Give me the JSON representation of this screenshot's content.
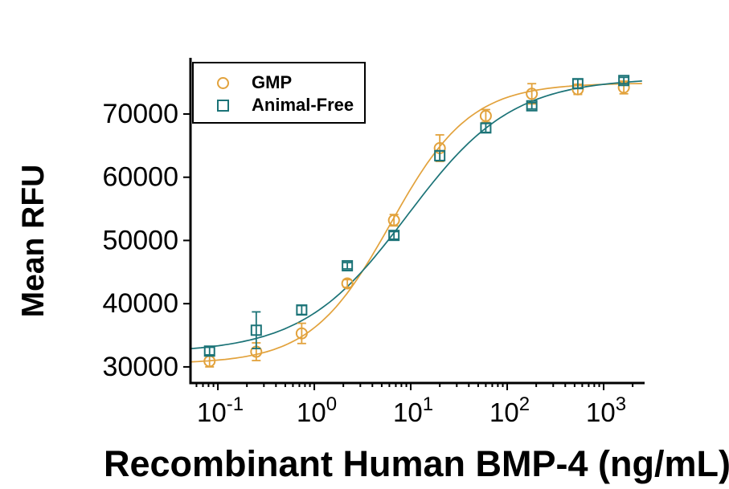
{
  "chart_data": {
    "type": "scatter",
    "title": "",
    "xlabel": "Recombinant Human BMP-4 (ng/mL)",
    "ylabel": "Mean RFU",
    "x_scale": "log",
    "grid": false,
    "legend_position": "top-left",
    "xlim": [
      0.052,
      2660
    ],
    "ylim": [
      27450,
      78890
    ],
    "curve_xmax": 2500,
    "xticks": [
      {
        "value": 0.1,
        "base": "10",
        "exp": "-1"
      },
      {
        "value": 1,
        "base": "10",
        "exp": "0"
      },
      {
        "value": 10,
        "base": "10",
        "exp": "1"
      },
      {
        "value": 100,
        "base": "10",
        "exp": "2"
      },
      {
        "value": 1000,
        "base": "10",
        "exp": "3"
      }
    ],
    "yticks": [
      {
        "value": 30000,
        "label": "30000"
      },
      {
        "value": 40000,
        "label": "40000"
      },
      {
        "value": 50000,
        "label": "50000"
      },
      {
        "value": 60000,
        "label": "60000"
      },
      {
        "value": 70000,
        "label": "70000"
      }
    ],
    "x": [
      0.082,
      0.25,
      0.74,
      2.2,
      6.7,
      20,
      60,
      180,
      540,
      1620
    ],
    "series": [
      {
        "name": "GMP",
        "marker": "circle",
        "color": "#E2A23C",
        "values": [
          30900,
          32400,
          35300,
          43200,
          53200,
          64600,
          69700,
          73200,
          73900,
          74200
        ],
        "errors": [
          900,
          1400,
          1600,
          600,
          900,
          2100,
          1000,
          1600,
          800,
          1000
        ],
        "fit": {
          "bottom": 30500,
          "top": 74900,
          "ec50": 6.2,
          "hill": 1.05
        }
      },
      {
        "name": "Animal-Free",
        "marker": "square",
        "color": "#1B7377",
        "values": [
          32500,
          35800,
          39000,
          46000,
          50800,
          63400,
          67800,
          71300,
          74800,
          75300
        ],
        "errors": [
          600,
          2900,
          700,
          500,
          600,
          800,
          700,
          500,
          700,
          500
        ],
        "fit": {
          "bottom": 32200,
          "top": 75700,
          "ec50": 9.2,
          "hill": 0.8
        }
      }
    ],
    "axis_color": "#000000",
    "tick_label_color": "#000000"
  }
}
